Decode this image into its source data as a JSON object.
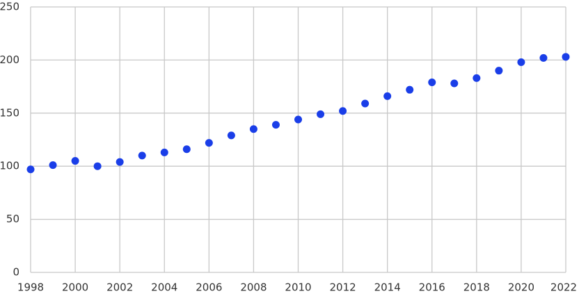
{
  "chart_data": {
    "type": "scatter",
    "x": [
      1998,
      1999,
      2000,
      2001,
      2002,
      2003,
      2004,
      2005,
      2006,
      2007,
      2008,
      2009,
      2010,
      2011,
      2012,
      2013,
      2014,
      2015,
      2016,
      2017,
      2018,
      2019,
      2020,
      2021,
      2022
    ],
    "values": [
      97,
      101,
      105,
      100,
      104,
      110,
      113,
      116,
      122,
      129,
      135,
      139,
      144,
      149,
      152,
      159,
      166,
      172,
      179,
      178,
      183,
      190,
      198,
      202,
      203
    ],
    "color": "#1a3ee8",
    "xlim": [
      1998,
      2022
    ],
    "xticks": [
      1998,
      2000,
      2002,
      2004,
      2006,
      2008,
      2010,
      2012,
      2014,
      2016,
      2018,
      2020,
      2022
    ],
    "ylim": [
      0,
      250
    ],
    "yticks": [
      0,
      50,
      100,
      150,
      200,
      250
    ],
    "grid": true
  }
}
